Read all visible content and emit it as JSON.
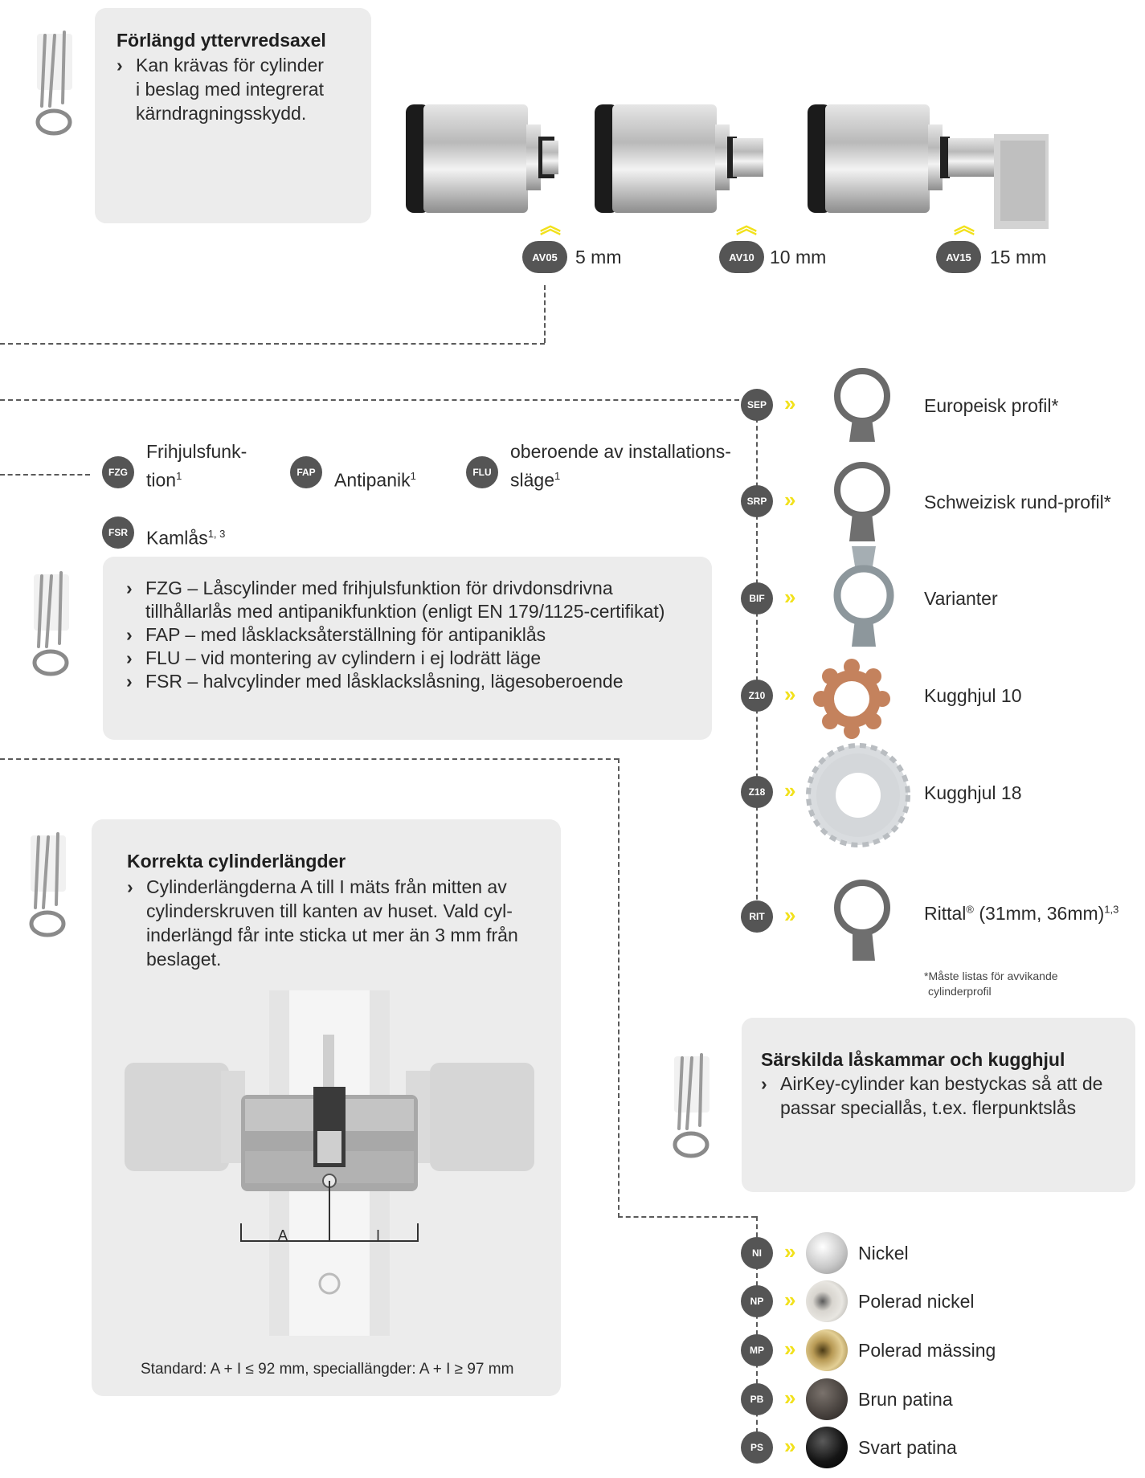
{
  "extended_axle": {
    "title": "Förlängd yttervredsaxel",
    "bullet": "Kan krävas för cylinder",
    "lines": [
      "i beslag med integrerat",
      "kärndragningsskydd."
    ],
    "variants": [
      {
        "code": "AV05",
        "label": "5 mm"
      },
      {
        "code": "AV10",
        "label": "10 mm"
      },
      {
        "code": "AV15",
        "label": "15 mm"
      }
    ]
  },
  "functions": {
    "items": [
      {
        "code": "FZG",
        "label_line1": "Frihjulsfunk-",
        "label_line2": "tion",
        "sup": "1"
      },
      {
        "code": "FAP",
        "label_line1": "Antipanik",
        "sup": "1"
      },
      {
        "code": "FLU",
        "label_line1": "oberoende av installations-",
        "label_line2": "släge",
        "sup": "1"
      },
      {
        "code": "FSR",
        "label_line1": "Kamlås",
        "sup": "1, 3"
      }
    ],
    "bullets": [
      "FZG – Låscylinder med frihjulsfunktion för drivdonsdrivna",
      "tillhållarlås med antipanikfunktion (enligt EN 179/1125-certifikat)",
      "FAP – med låsklacksåterställning för antipaniklås",
      "FLU – vid montering av cylindern i ej lodrätt läge",
      "FSR – halvcylinder med låsklackslåsning, lägesoberoende"
    ]
  },
  "cylinder_lengths": {
    "title": "Korrekta cylinderlängder",
    "bullet": "Cylinderlängderna A till I mäts från mitten av",
    "lines": [
      "cylinderskruven till kanten av huset. Vald cyl-",
      "inderlängd får inte sticka ut mer än 3 mm från",
      "beslaget."
    ],
    "dim_a": "A",
    "dim_i": "I",
    "caption": "Standard: A + I ≤ 92 mm, speciallängder: A + I ≥ 97 mm"
  },
  "cams": {
    "items": [
      {
        "code": "SEP",
        "label": "Europeisk profil*"
      },
      {
        "code": "SRP",
        "label": "Schweizisk rund-profil*"
      },
      {
        "code": "BIF",
        "label": "Varianter"
      },
      {
        "code": "Z10",
        "label": "Kugghjul 10"
      },
      {
        "code": "Z18",
        "label": "Kugghjul 18"
      },
      {
        "code": "RIT",
        "label": "Rittal",
        "reg": "®",
        "label_rest": " (31mm, 36mm)",
        "sup": "1,3"
      }
    ],
    "note_line1": "*Måste listas för avvikande",
    "note_line2": "cylinderprofil"
  },
  "special": {
    "title": "Särskilda låskammar och kugghjul",
    "bullet": "AirKey-cylinder kan bestyckas så att de",
    "lines": [
      "passar speciallås, t.ex. flerpunktslås"
    ]
  },
  "finishes": [
    {
      "code": "NI",
      "label": "Nickel",
      "color": "#c9c9c9"
    },
    {
      "code": "NP",
      "label": "Polerad nickel",
      "color": "#d8d5cf"
    },
    {
      "code": "MP",
      "label": "Polerad mässing",
      "color": "#b89a55"
    },
    {
      "code": "PB",
      "label": "Brun patina",
      "color": "#4a4440"
    },
    {
      "code": "PS",
      "label": "Svart patina",
      "color": "#151515"
    }
  ],
  "icons": [
    "tool-icon",
    "chevron-double-up-icon",
    "chevron-double-right-icon"
  ]
}
